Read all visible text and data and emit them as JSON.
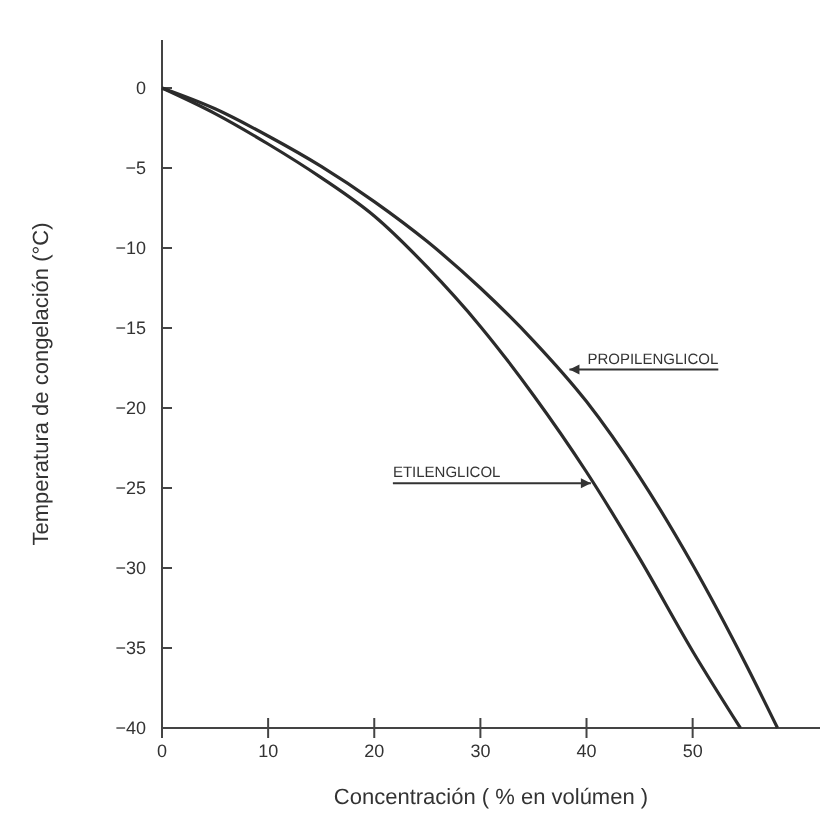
{
  "chart_data": {
    "type": "line",
    "xlabel": "Concentración   ( % en volúmen )",
    "ylabel": "Temperatura de congelación   (°C)",
    "xlim": [
      0,
      62
    ],
    "ylim": [
      -40,
      3
    ],
    "xticks": [
      0,
      10,
      20,
      30,
      40,
      50
    ],
    "yticks": [
      0,
      -5,
      -10,
      -15,
      -20,
      -25,
      -30,
      -35,
      -40
    ],
    "grid": false,
    "marker": "none",
    "line_style": "solid",
    "series": [
      {
        "color": "#2b2b2b",
        "x": [
          0,
          5,
          10,
          15,
          20,
          25,
          30,
          35,
          40,
          45,
          50,
          54.5
        ],
        "values": [
          0,
          -1.6,
          -3.5,
          -5.6,
          -8,
          -11.2,
          -14.9,
          -19.2,
          -24,
          -29.4,
          -35.2,
          -40
        ]
      },
      {
        "color": "#2b2b2b",
        "x": [
          0,
          5,
          10,
          15,
          20,
          25,
          30,
          35,
          40,
          45,
          50,
          55,
          58
        ],
        "values": [
          0,
          -1.3,
          -3,
          -4.9,
          -7.1,
          -9.6,
          -12.5,
          -15.8,
          -19.6,
          -24.3,
          -29.8,
          -36,
          -40
        ]
      }
    ],
    "annotations": [
      {
        "text": "PROPILENGLICOL",
        "x": 38.2,
        "y": -17.6
      },
      {
        "text": "ETILENGLICOL",
        "x": 40.6,
        "y": -24.7
      }
    ]
  }
}
